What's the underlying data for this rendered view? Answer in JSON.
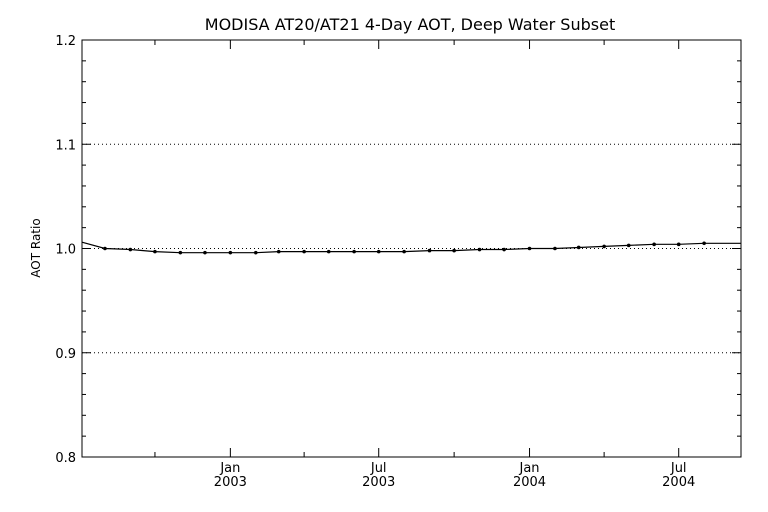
{
  "chart_data": {
    "type": "line",
    "title": "MODISA AT20/AT21 4-Day AOT, Deep Water Subset",
    "xlabel": "",
    "ylabel": "AOT Ratio",
    "ylim": [
      0.8,
      1.2
    ],
    "xlim": [
      "2002-07-04",
      "2004-09-15"
    ],
    "y_ticks": [
      "0.8",
      "0.9",
      "1.0",
      "1.1",
      "1.2"
    ],
    "y_grid": [
      0.9,
      1.0,
      1.1
    ],
    "x_ticks": [
      {
        "date": "2003-01-01",
        "month": "Jan",
        "year": "2003"
      },
      {
        "date": "2003-07-01",
        "month": "Jul",
        "year": "2003"
      },
      {
        "date": "2004-01-01",
        "month": "Jan",
        "year": "2004"
      },
      {
        "date": "2004-07-01",
        "month": "Jul",
        "year": "2004"
      }
    ],
    "series": [
      {
        "points": [
          {
            "x": "2002-07-04",
            "y": 1.006
          },
          {
            "x": "2002-08-01",
            "y": 1.0
          },
          {
            "x": "2002-09-01",
            "y": 0.999
          },
          {
            "x": "2002-10-01",
            "y": 0.997
          },
          {
            "x": "2002-11-01",
            "y": 0.996
          },
          {
            "x": "2002-12-01",
            "y": 0.996
          },
          {
            "x": "2003-01-01",
            "y": 0.996
          },
          {
            "x": "2003-02-01",
            "y": 0.996
          },
          {
            "x": "2003-03-01",
            "y": 0.997
          },
          {
            "x": "2003-04-01",
            "y": 0.997
          },
          {
            "x": "2003-05-01",
            "y": 0.997
          },
          {
            "x": "2003-06-01",
            "y": 0.997
          },
          {
            "x": "2003-07-01",
            "y": 0.997
          },
          {
            "x": "2003-08-01",
            "y": 0.997
          },
          {
            "x": "2003-09-01",
            "y": 0.998
          },
          {
            "x": "2003-10-01",
            "y": 0.998
          },
          {
            "x": "2003-11-01",
            "y": 0.999
          },
          {
            "x": "2003-12-01",
            "y": 0.999
          },
          {
            "x": "2004-01-01",
            "y": 1.0
          },
          {
            "x": "2004-02-01",
            "y": 1.0
          },
          {
            "x": "2004-03-01",
            "y": 1.001
          },
          {
            "x": "2004-04-01",
            "y": 1.002
          },
          {
            "x": "2004-05-01",
            "y": 1.003
          },
          {
            "x": "2004-06-01",
            "y": 1.004
          },
          {
            "x": "2004-07-01",
            "y": 1.004
          },
          {
            "x": "2004-08-01",
            "y": 1.005
          },
          {
            "x": "2004-09-15",
            "y": 1.005
          }
        ]
      }
    ],
    "grid": true,
    "line_color": "#000000",
    "grid_color": "#000000"
  }
}
